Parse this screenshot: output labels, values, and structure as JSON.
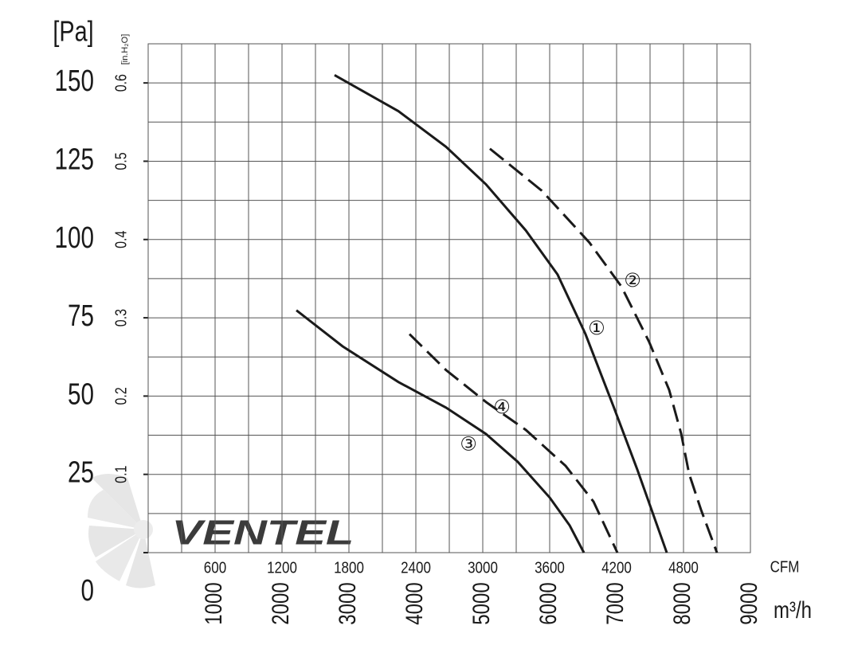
{
  "chart_data": {
    "type": "line",
    "y_label": "[Pa]",
    "y2_label": "[in.H₂O]",
    "x_label": "CFM",
    "x2_label": "m³/h",
    "watermark": "VENTEL",
    "xlim": [
      0,
      5400
    ],
    "xticks": [
      600,
      1200,
      1800,
      2400,
      3000,
      3600,
      4200,
      4800
    ],
    "xgrid": [
      0,
      300,
      600,
      900,
      1200,
      1500,
      1800,
      2100,
      2400,
      2700,
      3000,
      3300,
      3600,
      3900,
      4200,
      4500,
      4800,
      5100,
      5400
    ],
    "x2lim": [
      0,
      9000
    ],
    "x2ticks": [
      1000,
      2000,
      3000,
      4000,
      5000,
      6000,
      7000,
      8000,
      9000
    ],
    "ylim": [
      0,
      162.5
    ],
    "yticks": [
      0,
      25,
      50,
      75,
      100,
      125,
      150
    ],
    "ygrid": [
      0,
      12.5,
      25,
      37.5,
      50,
      62.5,
      75,
      87.5,
      100,
      112.5,
      125,
      137.5,
      150,
      162.5
    ],
    "y2lim": [
      0,
      0.65
    ],
    "y2ticks": [
      0.1,
      0.2,
      0.3,
      0.4,
      0.5,
      0.6
    ],
    "series": [
      {
        "name": "①",
        "color": "#1a1a1a",
        "style": "solid",
        "x": [
          1671,
          2243,
          2671,
          3029,
          3386,
          3671,
          3921,
          4171,
          4386,
          4650
        ],
        "values": [
          152.5,
          141,
          129.6,
          117.6,
          102.9,
          88.8,
          69.8,
          46.8,
          26.5,
          0
        ]
      },
      {
        "name": "②",
        "color": "#1a1a1a",
        "style": "dashed",
        "x": [
          3064,
          3529,
          3957,
          4243,
          4493,
          4671,
          4779,
          4850,
          4957,
          5100
        ],
        "values": [
          129,
          115.6,
          99,
          85,
          67.2,
          52,
          38,
          25.2,
          13.7,
          0
        ]
      },
      {
        "name": "③",
        "color": "#1a1a1a",
        "style": "solid",
        "x": [
          1329,
          1743,
          2243,
          2671,
          3029,
          3314,
          3600,
          3779,
          3907
        ],
        "values": [
          77.4,
          65.9,
          54.5,
          46.3,
          37.9,
          29,
          17.6,
          8.7,
          0
        ]
      },
      {
        "name": "④",
        "color": "#1a1a1a",
        "style": "dashed",
        "x": [
          2343,
          2671,
          3029,
          3386,
          3743,
          3993,
          4207
        ],
        "values": [
          69.8,
          58.3,
          48.1,
          39.2,
          27.7,
          16.3,
          0
        ]
      }
    ]
  }
}
